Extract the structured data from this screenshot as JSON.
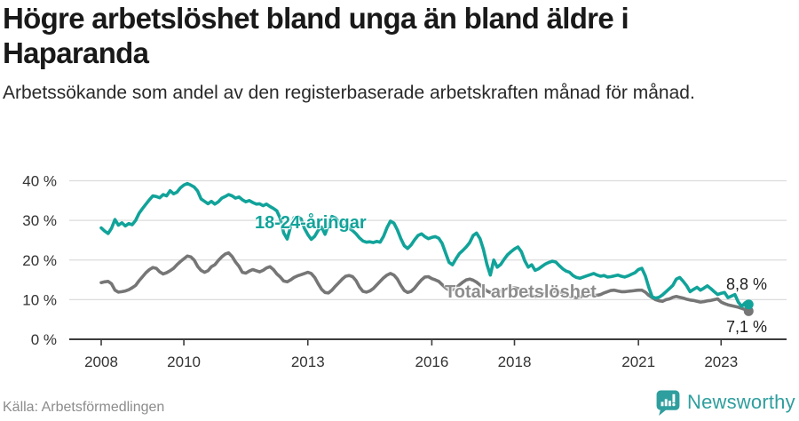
{
  "header": {
    "title": "Högre arbetslöshet bland unga än bland äldre i Haparanda",
    "subtitle": "Arbetssökande som andel av den registerbaserade arbetskraften månad för månad."
  },
  "footer": {
    "source": "Källa: Arbetsförmedlingen",
    "brand": "Newsworthy",
    "brand_color": "#2f9e9e",
    "logo_icon": "speech-bubble-with-bar-chart-and-exclamation"
  },
  "chart_data": {
    "type": "line",
    "frequency": "monthly",
    "x_start": "2008-01",
    "x_end": "2023-09",
    "x_ticks": [
      2008,
      2010,
      2013,
      2016,
      2018,
      2021,
      2023
    ],
    "y_ticks": [
      0,
      10,
      20,
      30,
      40
    ],
    "y_tick_suffix": " %",
    "ylim": [
      0,
      42
    ],
    "grid": "horizontal",
    "legend": "inline-labels",
    "colors": {
      "grid": "#dcdcdc",
      "axis": "#3c3c3c",
      "tick_text": "#333333"
    },
    "series": [
      {
        "name": "18-24-åringar",
        "color": "#11a39a",
        "end_label": "8,8 %",
        "end_value": 8.8,
        "values": [
          28.1,
          27.3,
          26.7,
          28.0,
          30.2,
          28.8,
          29.4,
          28.6,
          29.2,
          28.9,
          30.0,
          31.8,
          33.0,
          34.1,
          35.2,
          36.2,
          36.0,
          35.7,
          36.5,
          36.2,
          37.5,
          36.7,
          37.1,
          38.2,
          38.9,
          39.3,
          38.9,
          38.4,
          37.4,
          35.4,
          34.8,
          34.2,
          34.8,
          34.1,
          34.7,
          35.6,
          36.0,
          36.5,
          36.2,
          35.6,
          35.9,
          35.2,
          34.7,
          35.0,
          34.5,
          34.1,
          34.2,
          33.7,
          34.1,
          33.5,
          33.0,
          32.4,
          30.5,
          26.8,
          25.3,
          28.5,
          30.7,
          30.9,
          30.4,
          28.0,
          26.4,
          25.2,
          26.0,
          27.5,
          28.3,
          26.5,
          28.8,
          31.0,
          30.6,
          29.6,
          28.9,
          28.3,
          28.0,
          27.4,
          26.6,
          25.6,
          24.8,
          24.5,
          24.6,
          24.4,
          24.7,
          24.5,
          26.0,
          28.2,
          29.8,
          29.3,
          27.6,
          25.4,
          23.6,
          22.9,
          23.8,
          25.1,
          26.2,
          26.6,
          25.9,
          25.4,
          25.7,
          25.9,
          25.5,
          24.2,
          21.8,
          19.4,
          18.8,
          20.3,
          21.6,
          22.4,
          23.3,
          24.4,
          26.2,
          26.8,
          25.4,
          22.6,
          18.9,
          16.2,
          20.0,
          18.2,
          18.9,
          20.2,
          21.3,
          22.1,
          22.8,
          23.3,
          22.1,
          19.8,
          18.2,
          18.8,
          17.4,
          17.8,
          18.4,
          19.0,
          19.4,
          19.7,
          19.5,
          18.6,
          17.8,
          17.2,
          16.9,
          16.1,
          15.6,
          15.4,
          15.7,
          16.0,
          16.3,
          16.6,
          16.2,
          15.9,
          16.1,
          15.7,
          15.8,
          16.0,
          16.2,
          15.9,
          15.7,
          16.0,
          16.4,
          16.8,
          17.6,
          17.9,
          16.0,
          13.1,
          10.7,
          10.4,
          10.6,
          11.2,
          12.0,
          12.8,
          13.6,
          15.2,
          15.6,
          14.6,
          13.5,
          12.0,
          12.6,
          13.1,
          12.4,
          12.9,
          13.5,
          12.8,
          12.0,
          11.3,
          11.6,
          11.8,
          10.5,
          10.9,
          11.3,
          9.4,
          8.3,
          9.2,
          8.8
        ]
      },
      {
        "name": "Total arbetslöshet",
        "color": "#767676",
        "label_color": "#8d8d8d",
        "end_label": "7,1 %",
        "end_value": 7.1,
        "values": [
          14.3,
          14.5,
          14.6,
          14.0,
          12.4,
          11.9,
          12.0,
          12.2,
          12.5,
          13.0,
          13.6,
          14.8,
          15.8,
          16.8,
          17.6,
          18.1,
          17.9,
          17.0,
          16.5,
          16.8,
          17.3,
          17.9,
          18.8,
          19.6,
          20.3,
          21.0,
          20.8,
          20.0,
          18.4,
          17.4,
          16.9,
          17.3,
          18.3,
          18.8,
          19.9,
          20.8,
          21.5,
          21.8,
          20.9,
          19.5,
          18.4,
          16.9,
          16.7,
          17.2,
          17.6,
          17.3,
          17.0,
          17.4,
          18.0,
          18.3,
          17.6,
          16.5,
          15.7,
          14.7,
          14.5,
          15.0,
          15.6,
          16.0,
          16.3,
          16.6,
          16.9,
          16.6,
          15.6,
          14.0,
          12.6,
          11.8,
          11.7,
          12.4,
          13.4,
          14.3,
          15.2,
          15.9,
          16.1,
          15.8,
          14.8,
          13.2,
          12.1,
          11.9,
          12.2,
          12.8,
          13.7,
          14.6,
          15.5,
          16.2,
          16.6,
          16.2,
          15.2,
          13.6,
          12.3,
          11.8,
          12.1,
          12.9,
          14.0,
          15.0,
          15.7,
          15.8,
          15.3,
          15.0,
          14.6,
          13.8,
          13.0,
          12.4,
          12.5,
          13.0,
          13.7,
          14.4,
          15.0,
          15.2,
          14.9,
          14.4,
          13.7,
          12.9,
          12.2,
          11.8,
          11.6,
          11.8,
          12.1,
          12.4,
          12.7,
          12.9,
          13.0,
          12.8,
          12.4,
          11.8,
          11.3,
          11.0,
          10.8,
          11.0,
          11.3,
          11.6,
          11.8,
          12.0,
          12.1,
          11.9,
          11.6,
          11.2,
          10.9,
          10.7,
          10.5,
          10.7,
          11.0,
          11.2,
          11.3,
          11.2,
          11.1,
          11.3,
          11.7,
          12.0,
          12.3,
          12.4,
          12.2,
          12.0,
          12.0,
          12.1,
          12.2,
          12.3,
          12.4,
          12.4,
          11.9,
          11.1,
          10.5,
          10.0,
          9.7,
          9.6,
          10.0,
          10.2,
          10.6,
          10.8,
          10.6,
          10.4,
          10.1,
          9.9,
          9.8,
          9.6,
          9.4,
          9.5,
          9.7,
          9.8,
          10.0,
          10.2,
          9.4,
          9.0,
          8.7,
          8.5,
          8.3,
          8.1,
          7.8,
          7.5,
          7.1
        ]
      }
    ]
  }
}
